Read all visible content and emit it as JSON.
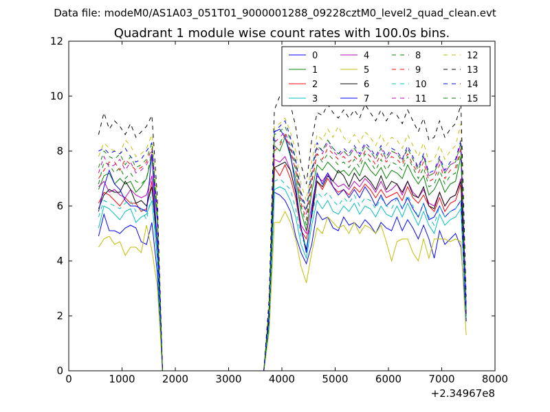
{
  "chart_data": {
    "type": "line",
    "suptitle": "Data file: modeM0/AS1A03_051T01_9000001288_09228cztM0_level2_quad_clean.evt",
    "title": "Quadrant 1 module wise count rates with 100.0s bins.",
    "xlabel": "",
    "ylabel": "",
    "x_offset_label": "+2.34967e8",
    "xlim": [
      0,
      8000
    ],
    "ylim": [
      0,
      12
    ],
    "x_ticks": [
      0,
      1000,
      2000,
      3000,
      4000,
      5000,
      6000,
      7000,
      8000
    ],
    "x_tick_labels": [
      "0",
      "1000",
      "2000",
      "3000",
      "4000",
      "5000",
      "6000",
      "7000",
      "8000"
    ],
    "y_ticks": [
      0,
      2,
      4,
      6,
      8,
      10,
      12
    ],
    "y_tick_labels": [
      "0",
      "2",
      "4",
      "6",
      "8",
      "10",
      "12"
    ],
    "legend": {
      "location": "top-right",
      "columns": 4
    },
    "x": [
      560,
      660,
      760,
      860,
      960,
      1060,
      1160,
      1260,
      1360,
      1460,
      1560,
      1660,
      1760,
      1860,
      1960,
      2060,
      2160,
      2260,
      2360,
      2460,
      2560,
      2660,
      2760,
      2860,
      2960,
      3060,
      3160,
      3260,
      3360,
      3460,
      3560,
      3660,
      3760,
      3860,
      3960,
      4060,
      4160,
      4260,
      4360,
      4460,
      4560,
      4660,
      4760,
      4860,
      4960,
      5060,
      5160,
      5260,
      5360,
      5460,
      5560,
      5660,
      5760,
      5860,
      5960,
      6060,
      6160,
      6260,
      6360,
      6460,
      6560,
      6660,
      6760,
      6860,
      6960,
      7060,
      7160,
      7260,
      7360,
      7460
    ],
    "series": [
      {
        "name": "0",
        "color": "#0000ff",
        "dash": "solid",
        "values": [
          4.9,
          5.7,
          5.1,
          5.1,
          5.0,
          5.2,
          5.3,
          5.2,
          4.7,
          4.6,
          5.4,
          3.6,
          0,
          0,
          0,
          0,
          0,
          0,
          0,
          0,
          0,
          0,
          0,
          0,
          0,
          0,
          0,
          0,
          0,
          0,
          0,
          0,
          1.5,
          6.5,
          6.4,
          6.2,
          5.8,
          4.9,
          4.3,
          3.9,
          4.6,
          5.8,
          5.5,
          5.6,
          5.2,
          5.1,
          5.6,
          5.3,
          5.4,
          5.2,
          5.5,
          5.3,
          5.0,
          5.4,
          5.2,
          5.1,
          5.6,
          5.1,
          5.5,
          5.2,
          4.8,
          5.3,
          4.8,
          4.1,
          5.1,
          4.6,
          4.8,
          5.0,
          4.5,
          1.9
        ]
      },
      {
        "name": "1",
        "color": "#008000",
        "dash": "solid",
        "values": [
          6.6,
          7.1,
          7.2,
          6.8,
          7.0,
          6.8,
          6.9,
          6.5,
          6.7,
          7.0,
          7.8,
          5.5,
          0,
          0,
          0,
          0,
          0,
          0,
          0,
          0,
          0,
          0,
          0,
          0,
          0,
          0,
          0,
          0,
          0,
          0,
          0,
          0,
          2.2,
          8.2,
          8.0,
          8.5,
          7.8,
          7.0,
          5.8,
          5.1,
          6.5,
          7.5,
          7.3,
          7.6,
          7.4,
          7.2,
          7.3,
          7.1,
          7.4,
          7.1,
          7.6,
          7.3,
          7.1,
          7.4,
          7.0,
          7.3,
          7.2,
          7.0,
          7.5,
          7.1,
          6.8,
          7.1,
          6.4,
          6.6,
          7.0,
          6.5,
          6.8,
          6.9,
          7.8,
          2.1
        ]
      },
      {
        "name": "2",
        "color": "#ff0000",
        "dash": "solid",
        "values": [
          6.1,
          6.5,
          6.4,
          6.2,
          6.0,
          6.3,
          6.1,
          6.1,
          5.8,
          5.9,
          6.9,
          4.5,
          0,
          0,
          0,
          0,
          0,
          0,
          0,
          0,
          0,
          0,
          0,
          0,
          0,
          0,
          0,
          0,
          0,
          0,
          0,
          0,
          1.9,
          7.4,
          7.1,
          7.5,
          7.0,
          6.3,
          5.1,
          4.8,
          5.6,
          6.9,
          6.6,
          7.0,
          6.7,
          6.5,
          6.6,
          6.4,
          6.7,
          6.5,
          6.8,
          6.6,
          6.3,
          6.6,
          6.3,
          6.4,
          6.5,
          6.2,
          6.7,
          6.3,
          6.1,
          6.4,
          6.0,
          5.8,
          6.3,
          5.8,
          6.1,
          6.2,
          6.8,
          1.9
        ]
      },
      {
        "name": "3",
        "color": "#00bfbf",
        "dash": "solid",
        "values": [
          5.2,
          6.0,
          5.9,
          5.7,
          5.5,
          5.8,
          5.9,
          5.4,
          5.6,
          5.7,
          6.2,
          4.1,
          0,
          0,
          0,
          0,
          0,
          0,
          0,
          0,
          0,
          0,
          0,
          0,
          0,
          0,
          0,
          0,
          0,
          0,
          0,
          0,
          1.6,
          6.6,
          6.7,
          6.6,
          6.2,
          5.6,
          4.6,
          4.1,
          5.3,
          6.2,
          5.9,
          6.2,
          5.8,
          5.7,
          6.0,
          5.8,
          6.1,
          5.7,
          6.0,
          5.9,
          5.6,
          6.0,
          5.7,
          5.6,
          6.0,
          5.6,
          6.1,
          5.7,
          5.3,
          5.8,
          5.3,
          5.0,
          5.7,
          5.3,
          5.5,
          5.6,
          5.9,
          1.8
        ]
      },
      {
        "name": "4",
        "color": "#bf00bf",
        "dash": "solid",
        "values": [
          6.7,
          6.9,
          6.5,
          6.6,
          6.4,
          6.3,
          6.6,
          6.4,
          6.3,
          6.4,
          7.1,
          4.7,
          0,
          0,
          0,
          0,
          0,
          0,
          0,
          0,
          0,
          0,
          0,
          0,
          0,
          0,
          0,
          0,
          0,
          0,
          0,
          0,
          2.0,
          7.7,
          7.6,
          7.8,
          7.3,
          6.5,
          5.3,
          5.0,
          6.0,
          7.1,
          6.9,
          7.2,
          6.9,
          6.7,
          6.8,
          6.6,
          6.9,
          6.7,
          7.0,
          6.8,
          6.5,
          6.9,
          6.5,
          6.6,
          6.8,
          6.4,
          6.9,
          6.5,
          6.3,
          6.6,
          6.1,
          6.0,
          6.5,
          6.0,
          6.3,
          6.4,
          7.0,
          2.0
        ]
      },
      {
        "name": "5",
        "color": "#bfbf00",
        "dash": "solid",
        "values": [
          4.5,
          4.8,
          4.9,
          4.6,
          4.7,
          4.2,
          4.5,
          4.5,
          4.3,
          5.3,
          4.4,
          3.1,
          0,
          0,
          0,
          0,
          0,
          0,
          0,
          0,
          0,
          0,
          0,
          0,
          0,
          0,
          0,
          0,
          0,
          0,
          0,
          0,
          1.4,
          5.4,
          5.4,
          5.8,
          5.4,
          4.8,
          3.8,
          3.2,
          4.3,
          5.2,
          5.0,
          5.6,
          5.4,
          5.2,
          5.3,
          5.0,
          5.4,
          5.0,
          5.3,
          5.2,
          5.0,
          5.3,
          4.7,
          4.0,
          4.7,
          4.8,
          4.8,
          4.3,
          4.0,
          4.8,
          4.1,
          4.8,
          4.8,
          4.8,
          4.7,
          4.8,
          4.7,
          1.3
        ]
      },
      {
        "name": "6",
        "color": "#000000",
        "dash": "solid",
        "values": [
          5.9,
          6.4,
          6.6,
          6.5,
          6.5,
          6.9,
          6.6,
          6.1,
          6.2,
          6.0,
          6.7,
          4.6,
          0,
          0,
          0,
          0,
          0,
          0,
          0,
          0,
          0,
          0,
          0,
          0,
          0,
          0,
          0,
          0,
          0,
          0,
          0,
          0,
          1.8,
          7.4,
          7.5,
          7.6,
          7.3,
          6.5,
          5.2,
          4.4,
          5.7,
          6.9,
          6.7,
          7.1,
          6.9,
          7.3,
          7.1,
          6.7,
          7.2,
          6.9,
          7.1,
          6.9,
          6.6,
          7.1,
          6.6,
          6.9,
          6.8,
          6.5,
          6.9,
          6.4,
          6.3,
          6.7,
          6.0,
          5.9,
          6.5,
          6.0,
          6.3,
          6.4,
          6.9,
          2.0
        ]
      },
      {
        "name": "7",
        "color": "#0000ff",
        "dash": "solid",
        "values": [
          5.8,
          6.7,
          7.3,
          6.8,
          6.6,
          6.2,
          6.0,
          6.0,
          5.9,
          5.8,
          7.9,
          4.6,
          0,
          0,
          0,
          0,
          0,
          0,
          0,
          0,
          0,
          0,
          0,
          0,
          0,
          0,
          0,
          0,
          0,
          0,
          0,
          0,
          1.9,
          8.7,
          8.8,
          8.5,
          7.9,
          6.7,
          5.2,
          4.3,
          5.8,
          7.2,
          6.8,
          7.2,
          6.7,
          6.4,
          6.6,
          6.3,
          6.6,
          6.3,
          6.7,
          6.4,
          6.0,
          6.4,
          6.0,
          6.2,
          6.3,
          5.9,
          6.3,
          5.9,
          5.6,
          6.1,
          5.5,
          5.6,
          6.0,
          5.6,
          5.8,
          5.9,
          6.2,
          1.8
        ]
      },
      {
        "name": "8",
        "color": "#008000",
        "dash": "dashed",
        "values": [
          6.8,
          7.6,
          7.5,
          7.2,
          7.4,
          7.0,
          7.2,
          6.9,
          6.8,
          7.0,
          8.0,
          5.6,
          0,
          0,
          0,
          0,
          0,
          0,
          0,
          0,
          0,
          0,
          0,
          0,
          0,
          0,
          0,
          0,
          0,
          0,
          0,
          0,
          2.2,
          8.4,
          8.3,
          8.6,
          8.1,
          7.3,
          6.0,
          5.3,
          6.8,
          7.9,
          7.6,
          7.9,
          7.7,
          7.5,
          7.6,
          7.4,
          7.7,
          7.4,
          7.9,
          7.6,
          7.3,
          7.7,
          7.3,
          7.6,
          7.5,
          7.3,
          7.8,
          7.4,
          7.0,
          7.4,
          6.7,
          6.8,
          7.3,
          6.8,
          7.1,
          7.2,
          8.0,
          2.2
        ]
      },
      {
        "name": "9",
        "color": "#ff0000",
        "dash": "dashed",
        "values": [
          7.0,
          7.3,
          7.6,
          7.6,
          7.3,
          7.7,
          7.5,
          7.3,
          7.4,
          7.6,
          8.1,
          5.8,
          0,
          0,
          0,
          0,
          0,
          0,
          0,
          0,
          0,
          0,
          0,
          0,
          0,
          0,
          0,
          0,
          0,
          0,
          0,
          0,
          2.3,
          8.0,
          8.2,
          8.6,
          8.0,
          7.3,
          6.1,
          5.5,
          6.9,
          7.9,
          7.7,
          8.1,
          7.9,
          7.7,
          7.8,
          7.6,
          7.8,
          7.6,
          8.0,
          7.8,
          7.5,
          7.9,
          7.6,
          7.8,
          7.7,
          7.5,
          7.9,
          7.5,
          7.2,
          7.6,
          6.9,
          7.0,
          7.5,
          7.0,
          7.3,
          7.4,
          8.1,
          2.2
        ]
      },
      {
        "name": "10",
        "color": "#00bfbf",
        "dash": "dashed",
        "values": [
          5.6,
          6.2,
          6.1,
          6.0,
          5.9,
          6.1,
          6.2,
          5.8,
          5.9,
          5.5,
          6.5,
          4.4,
          0,
          0,
          0,
          0,
          0,
          0,
          0,
          0,
          0,
          0,
          0,
          0,
          0,
          0,
          0,
          0,
          0,
          0,
          0,
          0,
          1.7,
          6.9,
          7.0,
          6.8,
          6.6,
          5.9,
          4.9,
          4.5,
          5.6,
          6.5,
          6.3,
          6.5,
          6.2,
          6.0,
          6.3,
          6.1,
          6.4,
          6.0,
          6.3,
          6.2,
          5.9,
          6.3,
          6.0,
          5.9,
          6.3,
          5.9,
          6.4,
          6.0,
          5.6,
          6.1,
          5.6,
          5.3,
          6.0,
          5.6,
          5.8,
          5.9,
          6.2,
          1.9
        ]
      },
      {
        "name": "11",
        "color": "#bf00bf",
        "dash": "dashed",
        "values": [
          7.2,
          7.8,
          7.4,
          7.5,
          7.7,
          7.3,
          7.6,
          7.2,
          7.3,
          7.5,
          7.9,
          5.5,
          0,
          0,
          0,
          0,
          0,
          0,
          0,
          0,
          0,
          0,
          0,
          0,
          0,
          0,
          0,
          0,
          0,
          0,
          0,
          0,
          2.3,
          8.3,
          8.5,
          8.7,
          8.2,
          7.5,
          6.3,
          5.7,
          7.1,
          8.1,
          7.9,
          8.3,
          8.0,
          7.8,
          8.0,
          7.8,
          8.1,
          7.8,
          8.2,
          8.0,
          7.7,
          8.1,
          7.7,
          8.0,
          7.9,
          7.7,
          8.1,
          7.7,
          7.4,
          7.8,
          7.1,
          7.2,
          7.7,
          7.2,
          7.5,
          7.6,
          8.3,
          2.3
        ]
      },
      {
        "name": "12",
        "color": "#bfbf00",
        "dash": "dashed",
        "values": [
          7.8,
          8.3,
          8.1,
          8.0,
          7.9,
          8.4,
          8.2,
          7.8,
          7.9,
          8.1,
          8.6,
          6.0,
          0,
          0,
          0,
          0,
          0,
          0,
          0,
          0,
          0,
          0,
          0,
          0,
          0,
          0,
          0,
          0,
          0,
          0,
          0,
          0,
          2.4,
          8.9,
          9.0,
          9.2,
          8.7,
          8.0,
          6.8,
          6.2,
          7.6,
          8.6,
          8.4,
          8.8,
          8.5,
          8.9,
          8.5,
          8.3,
          8.6,
          8.3,
          8.7,
          8.5,
          8.2,
          8.6,
          8.2,
          8.5,
          8.4,
          8.1,
          8.6,
          8.2,
          7.8,
          8.3,
          7.6,
          7.7,
          8.2,
          7.7,
          8.0,
          8.2,
          9.0,
          2.5
        ]
      },
      {
        "name": "13",
        "color": "#000000",
        "dash": "dashed",
        "values": [
          8.6,
          9.4,
          8.8,
          9.1,
          8.9,
          8.6,
          9.0,
          8.5,
          8.7,
          8.9,
          9.3,
          6.4,
          0,
          0,
          0,
          0,
          0,
          0,
          0,
          0,
          0,
          0,
          0,
          0,
          0,
          0,
          0,
          0,
          0,
          0,
          0,
          0,
          2.6,
          9.5,
          10.0,
          10.2,
          9.7,
          8.9,
          7.5,
          6.8,
          8.4,
          9.4,
          9.3,
          9.7,
          9.4,
          9.2,
          9.5,
          9.2,
          9.5,
          9.2,
          9.7,
          9.4,
          9.1,
          9.5,
          9.1,
          9.4,
          9.3,
          9.0,
          9.5,
          9.1,
          8.7,
          9.2,
          8.4,
          8.5,
          9.1,
          8.5,
          8.8,
          9.0,
          9.7,
          2.7
        ]
      },
      {
        "name": "14",
        "color": "#0000ff",
        "dash": "dashed",
        "values": [
          8.0,
          8.1,
          7.9,
          8.0,
          7.9,
          8.1,
          7.8,
          7.6,
          7.7,
          8.0,
          8.3,
          5.8,
          0,
          0,
          0,
          0,
          0,
          0,
          0,
          0,
          0,
          0,
          0,
          0,
          0,
          0,
          0,
          0,
          0,
          0,
          0,
          0,
          2.3,
          8.7,
          8.9,
          9.1,
          8.5,
          7.7,
          6.5,
          5.9,
          7.3,
          8.3,
          8.0,
          8.4,
          8.1,
          7.9,
          8.1,
          7.9,
          8.2,
          7.9,
          8.3,
          8.1,
          7.8,
          8.2,
          7.8,
          8.1,
          8.0,
          7.7,
          8.2,
          7.8,
          7.4,
          7.9,
          7.2,
          7.3,
          7.8,
          7.3,
          7.6,
          7.7,
          8.4,
          2.4
        ]
      },
      {
        "name": "15",
        "color": "#008000",
        "dash": "dashed",
        "values": [
          7.4,
          8.0,
          7.8,
          7.7,
          7.9,
          7.5,
          7.8,
          7.4,
          7.5,
          7.7,
          8.3,
          5.7,
          0,
          0,
          0,
          0,
          0,
          0,
          0,
          0,
          0,
          0,
          0,
          0,
          0,
          0,
          0,
          0,
          0,
          0,
          0,
          0,
          2.3,
          8.6,
          8.7,
          8.9,
          8.4,
          7.6,
          6.4,
          5.8,
          7.2,
          8.2,
          8.0,
          8.4,
          8.1,
          7.9,
          8.0,
          7.8,
          8.1,
          7.8,
          8.2,
          8.0,
          7.7,
          8.1,
          7.7,
          8.0,
          7.9,
          7.6,
          8.1,
          7.7,
          7.3,
          7.8,
          7.1,
          7.2,
          7.7,
          7.2,
          7.5,
          7.6,
          8.3,
          2.3
        ]
      }
    ]
  }
}
